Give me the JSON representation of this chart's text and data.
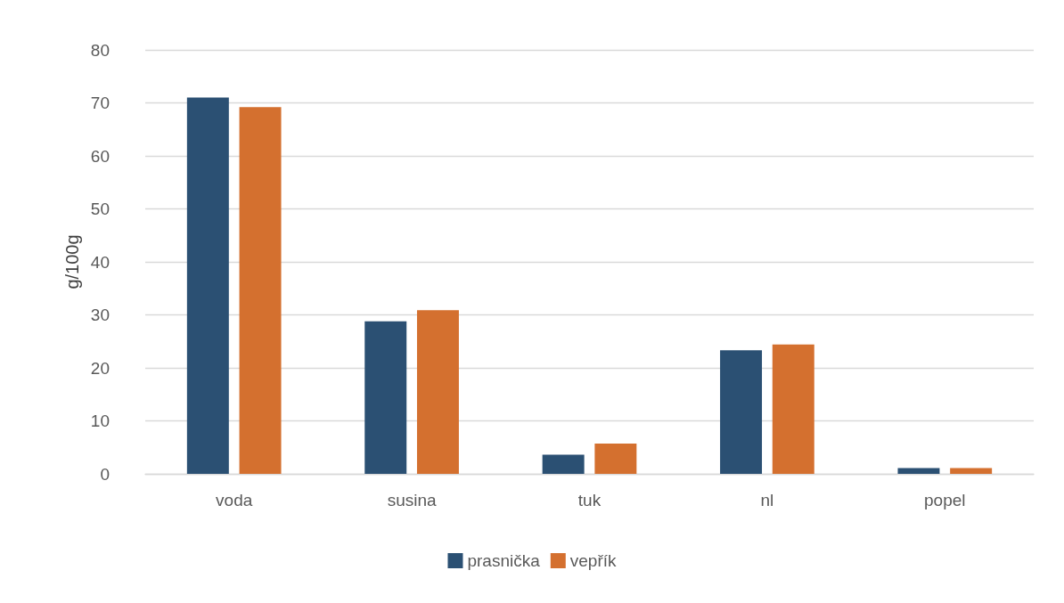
{
  "chart_data": {
    "type": "bar",
    "ylabel": "g/100g",
    "categories": [
      "voda",
      "susina",
      "tuk",
      "nl",
      "popel"
    ],
    "series": [
      {
        "name": "prasnička",
        "color": "#2b5073",
        "values": [
          71,
          28.8,
          3.6,
          23.3,
          1.1
        ]
      },
      {
        "name": "vepřík",
        "color": "#d4702f",
        "values": [
          69.2,
          30.9,
          5.7,
          24.4,
          1.1
        ]
      }
    ],
    "ylim": [
      0,
      80
    ],
    "yticks": [
      0,
      10,
      20,
      30,
      40,
      50,
      60,
      70,
      80
    ],
    "grid": "y",
    "legend": "bottom"
  }
}
